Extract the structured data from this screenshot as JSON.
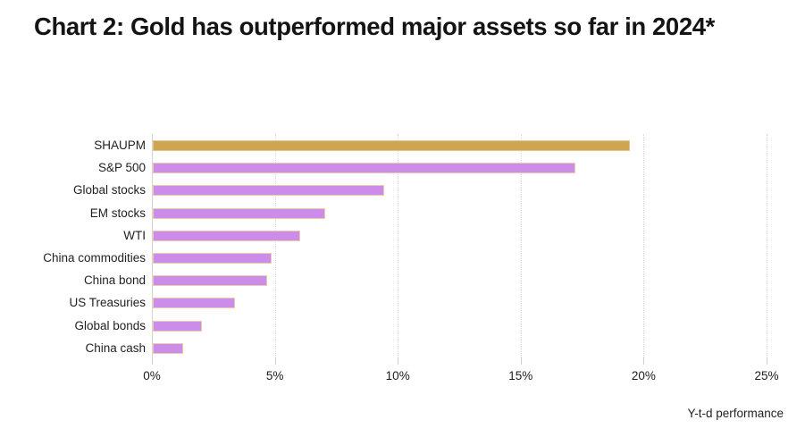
{
  "title": "Chart 2: Gold has outperformed major assets so far in 2024*",
  "chart_data": {
    "type": "bar",
    "orientation": "horizontal",
    "title": "Chart 2: Gold has outperformed major assets so far in 2024*",
    "categories": [
      "SHAUPM",
      "S&P 500",
      "Global stocks",
      "EM stocks",
      "WTI",
      "China commodities",
      "China bond",
      "US Treasuries",
      "Global bonds",
      "China cash"
    ],
    "values": [
      19.4,
      17.2,
      9.4,
      7.0,
      6.0,
      4.85,
      4.65,
      3.35,
      2.0,
      1.25
    ],
    "value_unit": "%",
    "xlabel": "Y-t-d performance",
    "x_ticks": [
      "0%",
      "5%",
      "10%",
      "15%",
      "20%",
      "25%"
    ],
    "xlim": [
      0,
      25
    ],
    "grid": "vertical dotted gridlines at 5% intervals",
    "legend": "none",
    "colors": {
      "highlight_category": "SHAUPM",
      "highlight_bar": "#d0a551",
      "highlight_border": "#e3c88e",
      "default_bar": "#cb8de9",
      "default_border": "#ecccaa"
    }
  }
}
